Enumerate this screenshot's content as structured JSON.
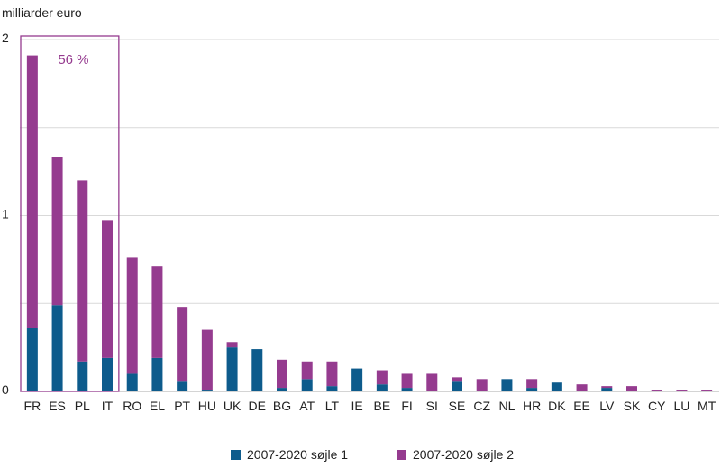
{
  "colors": {
    "series1": "#0d5b8c",
    "series2": "#953b8f",
    "highlight": "#953b8f",
    "grid": "#d9d9d9",
    "axis": "#aaaaaa"
  },
  "chart_data": {
    "type": "bar",
    "stacked": true,
    "ylabel": "milliarder euro",
    "ylim": [
      0,
      2
    ],
    "yticks": [
      0,
      1,
      2
    ],
    "grid": true,
    "legend_position": "bottom",
    "categories": [
      "FR",
      "ES",
      "PL",
      "IT",
      "RO",
      "EL",
      "PT",
      "HU",
      "UK",
      "DE",
      "BG",
      "AT",
      "LT",
      "IE",
      "BE",
      "FI",
      "SI",
      "SE",
      "CZ",
      "NL",
      "HR",
      "DK",
      "EE",
      "LV",
      "SK",
      "CY",
      "LU",
      "MT"
    ],
    "series": [
      {
        "name": "2007-2020 søjle 1",
        "color": "#0d5b8c",
        "values": [
          0.36,
          0.49,
          0.17,
          0.19,
          0.1,
          0.19,
          0.06,
          0.01,
          0.25,
          0.24,
          0.02,
          0.07,
          0.03,
          0.13,
          0.04,
          0.02,
          0.0,
          0.06,
          0.0,
          0.07,
          0.02,
          0.05,
          0.0,
          0.02,
          0.0,
          0.0,
          0.0,
          0.0
        ]
      },
      {
        "name": "2007-2020 søjle 2",
        "color": "#953b8f",
        "values": [
          1.55,
          0.84,
          1.03,
          0.78,
          0.66,
          0.52,
          0.42,
          0.34,
          0.03,
          0.0,
          0.16,
          0.1,
          0.14,
          0.0,
          0.08,
          0.08,
          0.1,
          0.02,
          0.07,
          0.0,
          0.05,
          0.0,
          0.04,
          0.01,
          0.03,
          0.01,
          0.01,
          0.01
        ]
      }
    ],
    "annotations": [
      {
        "text": "56 %",
        "covers": [
          "FR",
          "ES",
          "PL",
          "IT"
        ]
      }
    ]
  }
}
